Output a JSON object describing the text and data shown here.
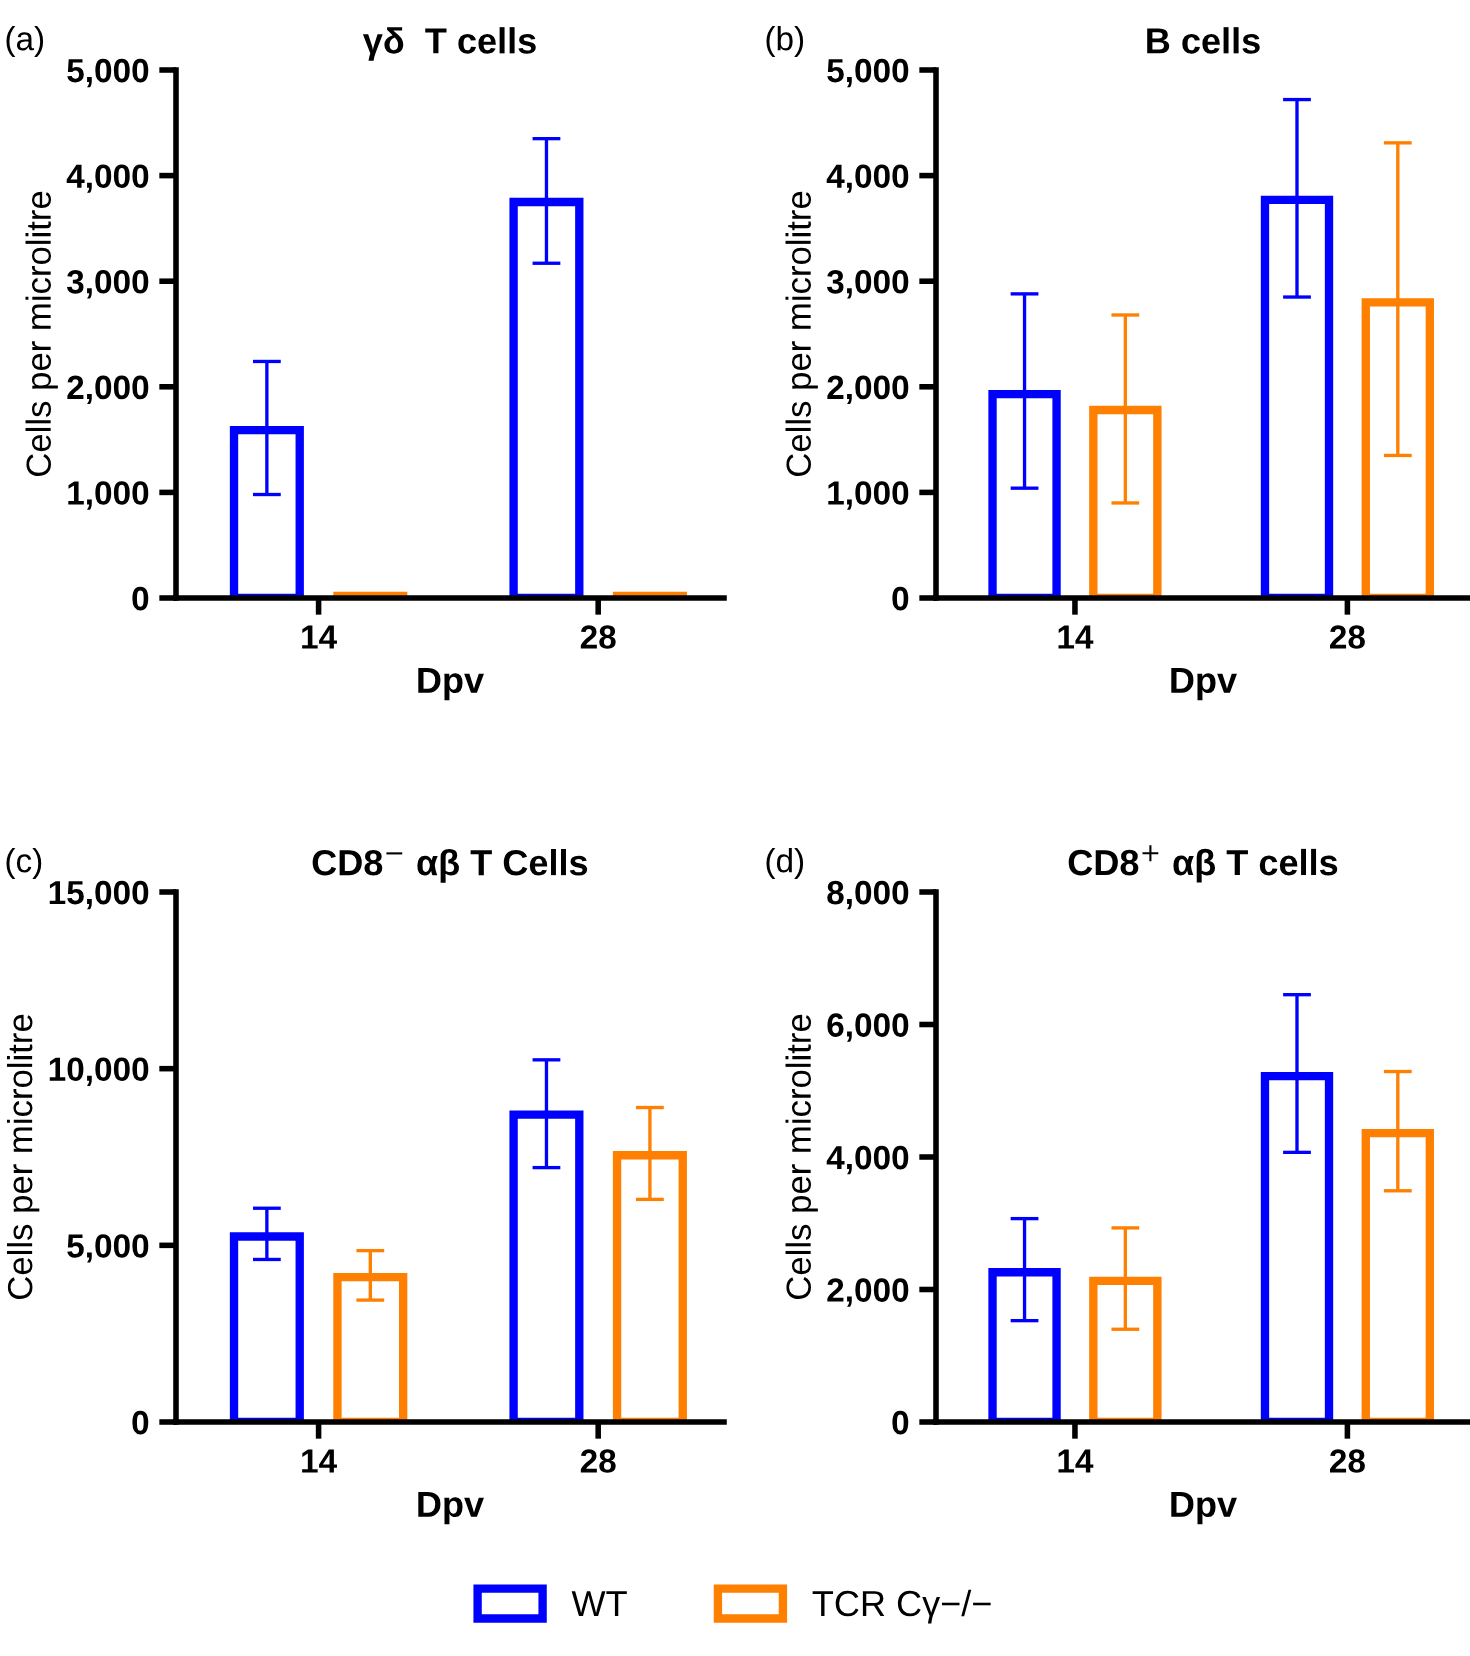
{
  "chart_data": [
    {
      "type": "bar",
      "title": "γδ  T cells",
      "xlabel": "Dpv",
      "ylabel": "Cells per microlitre",
      "annotations": [
        "(a)"
      ],
      "categories": [
        "14",
        "28"
      ],
      "ylim": [
        0,
        5000
      ],
      "yticks": [
        0,
        {
          "value": 1000,
          "label": "1,000"
        },
        {
          "value": 2000,
          "label": "2,000"
        },
        {
          "value": 3000,
          "label": "3,000"
        },
        {
          "value": 4000,
          "label": "4,000"
        },
        {
          "value": 5000,
          "label": "5,000"
        }
      ],
      "grid": false,
      "legend": "bottom",
      "series": [
        {
          "name": "WT",
          "color": "#0000ff",
          "values": [
            1590,
            3750
          ],
          "errors": [
            [
              980,
              2240
            ],
            [
              3170,
              4350
            ]
          ]
        },
        {
          "name": "TCR Cγ−/−",
          "color": "#ff7f00",
          "values": [
            20,
            20
          ]
        }
      ]
    },
    {
      "type": "bar",
      "title": "B cells",
      "xlabel": "Dpv",
      "ylabel": "Cells per microlitre",
      "annotations": [
        "(b)"
      ],
      "categories": [
        "14",
        "28"
      ],
      "ylim": [
        0,
        5000
      ],
      "yticks": [
        0,
        {
          "value": 1000,
          "label": "1,000"
        },
        {
          "value": 2000,
          "label": "2,000"
        },
        {
          "value": 3000,
          "label": "3,000"
        },
        {
          "value": 4000,
          "label": "4,000"
        },
        {
          "value": 5000,
          "label": "5,000"
        }
      ],
      "grid": false,
      "series": [
        {
          "color": "#0000ff",
          "values": [
            1930,
            3770
          ],
          "errors": [
            [
              1040,
              2880
            ],
            [
              2850,
              4720
            ]
          ]
        },
        {
          "color": "#ff7f00",
          "values": [
            1780,
            2800
          ],
          "errors": [
            [
              900,
              2680
            ],
            [
              1350,
              4310
            ]
          ]
        }
      ]
    },
    {
      "type": "bar",
      "title": "CD8$^{−}$ αβ T Cells",
      "xlabel": "Dpv",
      "ylabel": "Cells per microlitre",
      "annotations": [
        "(c)"
      ],
      "categories": [
        "14",
        "28"
      ],
      "ylim": [
        0,
        15000
      ],
      "yticks": [
        0,
        {
          "value": 5000,
          "label": "5,000"
        },
        {
          "value": 10000,
          "label": "10,000"
        },
        {
          "value": 15000,
          "label": "15,000"
        }
      ],
      "grid": false,
      "series": [
        {
          "color": "#0000ff",
          "values": [
            5250,
            8700
          ],
          "errors": [
            [
              4600,
              6050
            ],
            [
              7200,
              10250
            ]
          ]
        },
        {
          "color": "#ff7f00",
          "values": [
            4100,
            7550
          ],
          "errors": [
            [
              3450,
              4850
            ],
            [
              6300,
              8900
            ]
          ]
        }
      ]
    },
    {
      "type": "bar",
      "title": "CD8$^{+}$ αβ T cells",
      "xlabel": "Dpv",
      "ylabel": "Cells per microlitre",
      "annotations": [
        "(d)"
      ],
      "categories": [
        "14",
        "28"
      ],
      "ylim": [
        0,
        8000
      ],
      "yticks": [
        0,
        {
          "value": 2000,
          "label": "2,000"
        },
        {
          "value": 4000,
          "label": "4,000"
        },
        {
          "value": 6000,
          "label": "6,000"
        },
        {
          "value": 8000,
          "label": "8,000"
        }
      ],
      "grid": false,
      "series": [
        {
          "color": "#0000ff",
          "values": [
            2260,
            5220
          ],
          "errors": [
            [
              1530,
              3070
            ],
            [
              4070,
              6450
            ]
          ]
        },
        {
          "color": "#ff7f00",
          "values": [
            2130,
            4360
          ],
          "errors": [
            [
              1400,
              2930
            ],
            [
              3490,
              5290
            ]
          ]
        }
      ]
    }
  ]
}
